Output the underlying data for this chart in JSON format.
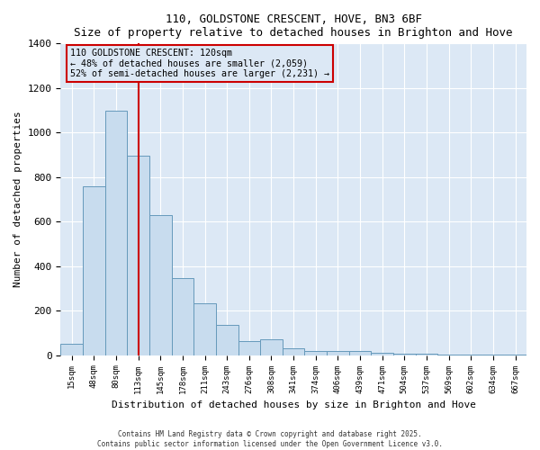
{
  "title": "110, GOLDSTONE CRESCENT, HOVE, BN3 6BF",
  "subtitle": "Size of property relative to detached houses in Brighton and Hove",
  "xlabel": "Distribution of detached houses by size in Brighton and Hove",
  "ylabel": "Number of detached properties",
  "bar_color": "#c8dcee",
  "bar_edge_color": "#6699bb",
  "plot_bg_color": "#dce8f5",
  "fig_bg_color": "#ffffff",
  "annotation_box_color": "#cc0000",
  "vline_color": "#cc0000",
  "vline_x": 3,
  "annotation_title": "110 GOLDSTONE CRESCENT: 120sqm",
  "annotation_line1": "← 48% of detached houses are smaller (2,059)",
  "annotation_line2": "52% of semi-detached houses are larger (2,231) →",
  "categories": [
    "15sqm",
    "48sqm",
    "80sqm",
    "113sqm",
    "145sqm",
    "178sqm",
    "211sqm",
    "243sqm",
    "276sqm",
    "308sqm",
    "341sqm",
    "374sqm",
    "406sqm",
    "439sqm",
    "471sqm",
    "504sqm",
    "537sqm",
    "569sqm",
    "602sqm",
    "634sqm",
    "667sqm"
  ],
  "values": [
    50,
    760,
    1100,
    895,
    630,
    345,
    235,
    135,
    65,
    70,
    30,
    20,
    20,
    18,
    10,
    8,
    5,
    4,
    3,
    2,
    2
  ],
  "ylim": [
    0,
    1400
  ],
  "yticks": [
    0,
    200,
    400,
    600,
    800,
    1000,
    1200,
    1400
  ],
  "footer1": "Contains HM Land Registry data © Crown copyright and database right 2025.",
  "footer2": "Contains public sector information licensed under the Open Government Licence v3.0."
}
